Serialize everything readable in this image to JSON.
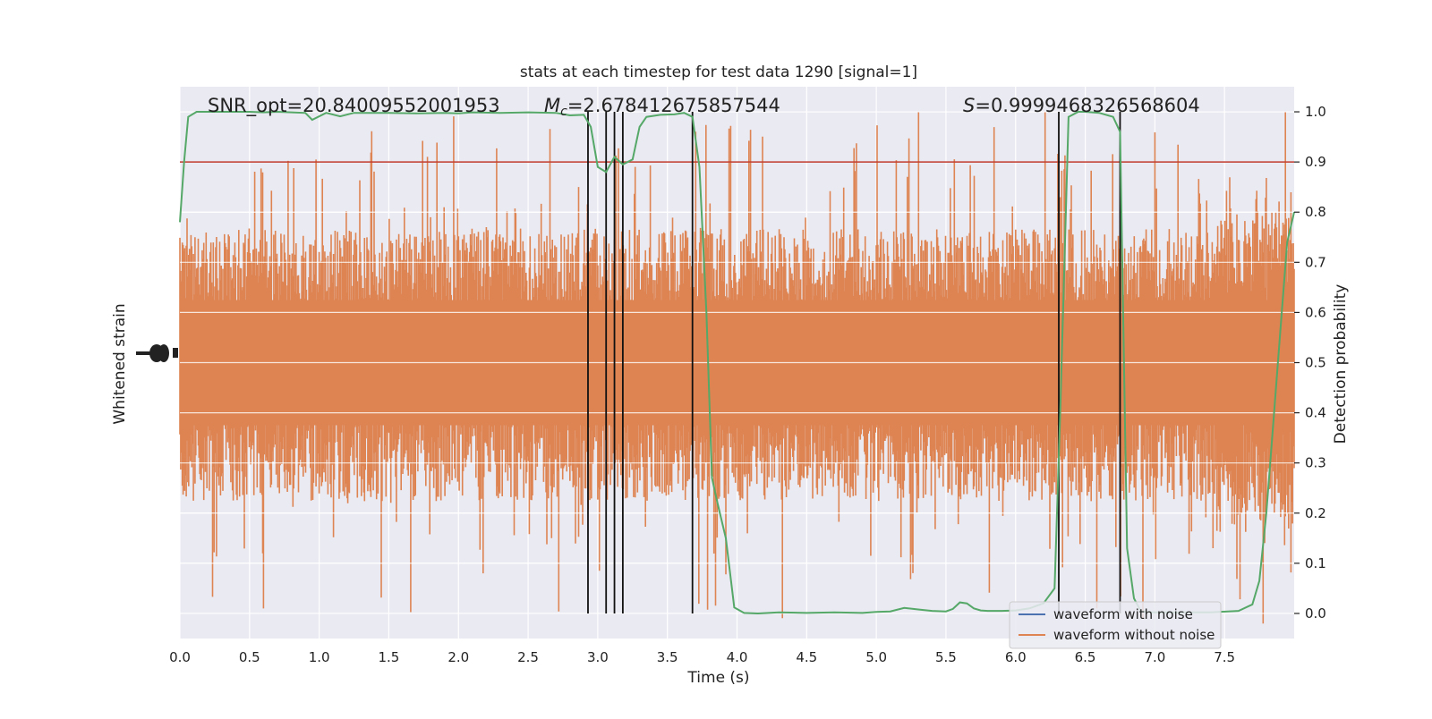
{
  "chart_data": {
    "type": "line",
    "title": "stats at each timestep for test data 1290 [signal=1]",
    "xlabel": "Time (s)",
    "ylabel_left": "Whitened strain",
    "ylabel_right": "Detection probability",
    "xlim": [
      0.0,
      8.0
    ],
    "ylim_right": [
      -0.05,
      1.05
    ],
    "grid": true,
    "legend_position": "bottom-right",
    "x_ticks": [
      "0.0",
      "0.5",
      "1.0",
      "1.5",
      "2.0",
      "2.5",
      "3.0",
      "3.5",
      "4.0",
      "4.5",
      "5.0",
      "5.5",
      "6.0",
      "6.5",
      "7.0",
      "7.5"
    ],
    "y_ticks_right": [
      "0.0",
      "0.1",
      "0.2",
      "0.3",
      "0.4",
      "0.5",
      "0.6",
      "0.7",
      "0.8",
      "0.9",
      "1.0"
    ],
    "annotations": {
      "snr": "SNR_opt=20.84009552001953",
      "mc_symbol": "M",
      "mc_sub": "c",
      "mc_value": "=2.678412675857544",
      "s_symbol": "S",
      "s_value": "=0.9999468326568604"
    },
    "threshold": {
      "value": 0.9,
      "color": "#c0392b"
    },
    "event_lines": [
      2.93,
      3.06,
      3.12,
      3.18,
      3.68,
      6.31,
      6.75
    ],
    "series": [
      {
        "name": "waveform with noise",
        "color": "#4c72b0"
      },
      {
        "name": "waveform without noise",
        "color": "#dd8452"
      }
    ],
    "detection_probability": {
      "color": "#55a868",
      "x": [
        0.0,
        0.03,
        0.06,
        0.12,
        0.2,
        0.3,
        0.4,
        0.5,
        0.6,
        0.7,
        0.8,
        0.9,
        0.95,
        1.05,
        1.15,
        1.25,
        1.35,
        1.5,
        1.7,
        1.9,
        2.0,
        2.1,
        2.3,
        2.5,
        2.7,
        2.8,
        2.9,
        2.95,
        3.0,
        3.06,
        3.12,
        3.18,
        3.25,
        3.3,
        3.35,
        3.45,
        3.55,
        3.62,
        3.68,
        3.73,
        3.78,
        3.82,
        3.86,
        3.92,
        3.98,
        4.05,
        4.15,
        4.3,
        4.5,
        4.7,
        4.9,
        5.0,
        5.1,
        5.2,
        5.3,
        5.4,
        5.5,
        5.55,
        5.6,
        5.65,
        5.7,
        5.75,
        5.8,
        5.9,
        6.0,
        6.1,
        6.2,
        6.28,
        6.32,
        6.38,
        6.45,
        6.5,
        6.55,
        6.6,
        6.7,
        6.75,
        6.8,
        6.85,
        6.9,
        7.0,
        7.2,
        7.4,
        7.6,
        7.7,
        7.75,
        7.8,
        7.85,
        7.9,
        7.95,
        8.0
      ],
      "y": [
        0.78,
        0.9,
        0.99,
        1.0,
        1.0,
        1.0,
        1.0,
        1.0,
        0.999,
        1.0,
        0.999,
        0.998,
        0.984,
        0.998,
        0.991,
        0.998,
        0.998,
        0.998,
        0.997,
        0.998,
        0.997,
        0.999,
        0.998,
        0.999,
        0.998,
        0.993,
        0.994,
        0.97,
        0.89,
        0.88,
        0.91,
        0.895,
        0.905,
        0.97,
        0.99,
        0.994,
        0.995,
        0.998,
        0.99,
        0.89,
        0.6,
        0.27,
        0.22,
        0.15,
        0.012,
        0.001,
        0.0,
        0.002,
        0.001,
        0.002,
        0.001,
        0.003,
        0.004,
        0.011,
        0.008,
        0.005,
        0.004,
        0.009,
        0.022,
        0.02,
        0.01,
        0.006,
        0.005,
        0.005,
        0.006,
        0.01,
        0.02,
        0.05,
        0.4,
        0.99,
        1.0,
        1.0,
        0.999,
        0.998,
        0.99,
        0.96,
        0.13,
        0.03,
        0.004,
        0.002,
        0.002,
        0.002,
        0.005,
        0.018,
        0.065,
        0.2,
        0.38,
        0.56,
        0.74,
        0.8
      ]
    },
    "waveform_without_noise": {
      "color": "#dd8452",
      "note_level": [
        0.55,
        0.23
      ]
    }
  }
}
